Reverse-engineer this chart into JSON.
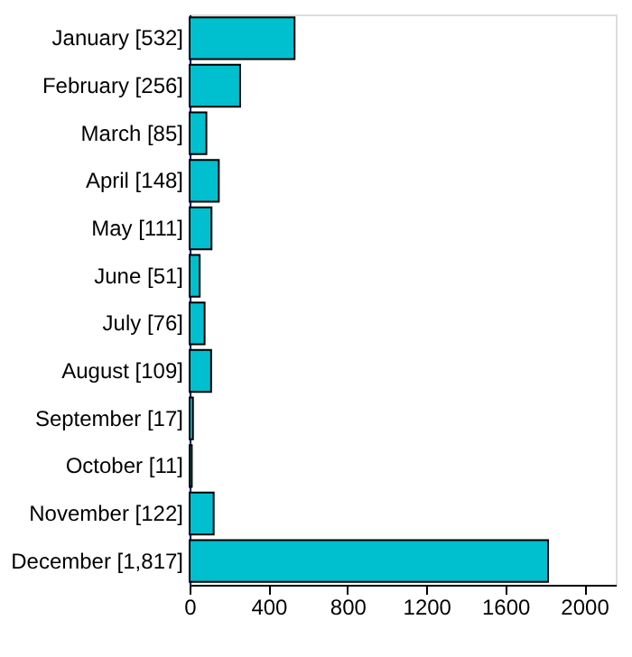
{
  "chart_data": {
    "type": "bar",
    "orientation": "horizontal",
    "categories": [
      "January [532]",
      "February [256]",
      "March [85]",
      "April [148]",
      "May [111]",
      "June [51]",
      "July [76]",
      "August [109]",
      "September [17]",
      "October [11]",
      "November [122]",
      "December [1,817]"
    ],
    "values": [
      532,
      256,
      85,
      148,
      111,
      51,
      76,
      109,
      17,
      11,
      122,
      1817
    ],
    "color": "#00bfcf",
    "xlim": [
      0,
      2160
    ],
    "xticks": [
      0,
      400,
      800,
      1200,
      1600,
      2000
    ],
    "grid": false
  }
}
